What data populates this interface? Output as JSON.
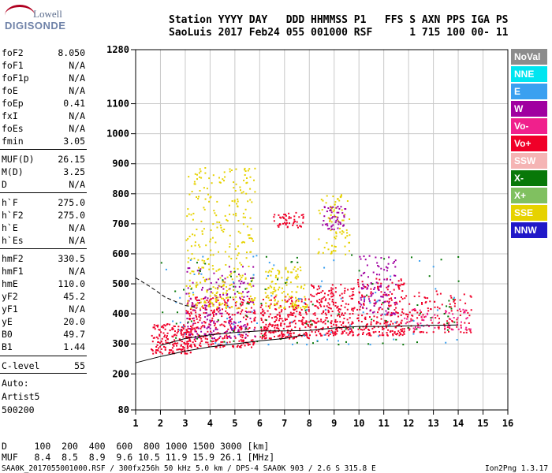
{
  "logo": {
    "line1": "Lowell",
    "line2": "DIGISONDE"
  },
  "header": {
    "line1": "Station YYYY DAY   DDD HHMMSS P1   FFS S AXN PPS IGA PS",
    "line2": "SaoLuis 2017 Feb24 055 001000 RSF      1 715 100 00- 11"
  },
  "params": [
    {
      "k": "foF2",
      "v": "8.050"
    },
    {
      "k": "foF1",
      "v": "N/A"
    },
    {
      "k": "foF1p",
      "v": "N/A"
    },
    {
      "k": "foE",
      "v": "N/A"
    },
    {
      "k": "foEp",
      "v": "0.41"
    },
    {
      "k": "fxI",
      "v": "N/A"
    },
    {
      "k": "foEs",
      "v": "N/A"
    },
    {
      "k": "fmin",
      "v": "3.05"
    },
    {
      "k": "MUF(D)",
      "v": "26.15"
    },
    {
      "k": "M(D)",
      "v": "3.25"
    },
    {
      "k": "D",
      "v": "N/A"
    },
    {
      "k": "h`F",
      "v": "275.0"
    },
    {
      "k": "h`F2",
      "v": "275.0"
    },
    {
      "k": "h`E",
      "v": "N/A"
    },
    {
      "k": "h`Es",
      "v": "N/A"
    },
    {
      "k": "hmF2",
      "v": "330.5"
    },
    {
      "k": "hmF1",
      "v": "N/A"
    },
    {
      "k": "hmE",
      "v": "110.0"
    },
    {
      "k": "yF2",
      "v": "45.2"
    },
    {
      "k": "yF1",
      "v": "N/A"
    },
    {
      "k": "yE",
      "v": "20.0"
    },
    {
      "k": "B0",
      "v": "49.7"
    },
    {
      "k": "B1",
      "v": "1.44"
    },
    {
      "k": "C-level",
      "v": "55"
    }
  ],
  "notes": [
    "Auto:",
    "Artist5",
    "500200"
  ],
  "bottom_table": {
    "line1": "D     100  200  400  600  800 1000 1500 3000 [km]",
    "line2": "MUF   8.4  8.5  8.9  9.6 10.5 11.9 15.9 26.1 [MHz]"
  },
  "footer": {
    "left": "SAA0K_2017055001000.RSF / 300fx256h 50 kHz 5.0 km / DPS-4 SAA0K 903 / 2.6 S 315.8 E",
    "right": "Ion2Png 1.3.17"
  },
  "legend": [
    {
      "label": "NoVal",
      "color": "#8c8c8c"
    },
    {
      "label": "NNE",
      "color": "#00e5f0"
    },
    {
      "label": "E",
      "color": "#3aa0f0"
    },
    {
      "label": "W",
      "color": "#a000a0"
    },
    {
      "label": "Vo-",
      "color": "#f0208c"
    },
    {
      "label": "Vo+",
      "color": "#f00028"
    },
    {
      "label": "SSW",
      "color": "#f5b4b4"
    },
    {
      "label": "X-",
      "color": "#087808"
    },
    {
      "label": "X+",
      "color": "#80c060"
    },
    {
      "label": "SSE",
      "color": "#e6d200"
    },
    {
      "label": "NNW",
      "color": "#2018c8"
    }
  ],
  "chart_data": {
    "type": "scatter",
    "xlim": [
      1,
      16
    ],
    "ylim": [
      80,
      1280
    ],
    "x_ticks": [
      1,
      2,
      3,
      4,
      5,
      6,
      7,
      8,
      9,
      10,
      11,
      12,
      13,
      14,
      15,
      16
    ],
    "y_ticks": [
      80,
      200,
      300,
      400,
      500,
      600,
      700,
      800,
      900,
      1000,
      1100,
      1280
    ],
    "grid": true,
    "clusters": [
      {
        "x": [
          1.6,
          3.2
        ],
        "y": [
          270,
          370
        ],
        "color": "#f00028",
        "n": 180
      },
      {
        "x": [
          3.0,
          5.8
        ],
        "y": [
          290,
          460
        ],
        "color": "#f00028",
        "n": 320
      },
      {
        "x": [
          3.0,
          5.8
        ],
        "y": [
          320,
          560
        ],
        "color": "#a000a0",
        "n": 180
      },
      {
        "x": [
          3.0,
          5.8
        ],
        "y": [
          420,
          900
        ],
        "color": "#e6d200",
        "n": 320
      },
      {
        "x": [
          6.0,
          8.0
        ],
        "y": [
          320,
          460
        ],
        "color": "#f00028",
        "n": 240
      },
      {
        "x": [
          6.2,
          7.9
        ],
        "y": [
          420,
          560
        ],
        "color": "#e6d200",
        "n": 120
      },
      {
        "x": [
          6.5,
          7.8
        ],
        "y": [
          690,
          740
        ],
        "color": "#f00028",
        "n": 50
      },
      {
        "x": [
          8.0,
          9.8
        ],
        "y": [
          330,
          500
        ],
        "color": "#f00028",
        "n": 240
      },
      {
        "x": [
          8.3,
          9.6
        ],
        "y": [
          600,
          800
        ],
        "color": "#e6d200",
        "n": 80
      },
      {
        "x": [
          8.5,
          9.5
        ],
        "y": [
          680,
          760
        ],
        "color": "#a000a0",
        "n": 50
      },
      {
        "x": [
          9.9,
          11.8
        ],
        "y": [
          330,
          520
        ],
        "color": "#f00028",
        "n": 220
      },
      {
        "x": [
          10.0,
          11.5
        ],
        "y": [
          400,
          600
        ],
        "color": "#a000a0",
        "n": 100
      },
      {
        "x": [
          11.8,
          14.5
        ],
        "y": [
          340,
          480
        ],
        "color": "#f00028",
        "n": 120
      },
      {
        "x": [
          11.8,
          14.5
        ],
        "y": [
          350,
          420
        ],
        "color": "#f0208c",
        "n": 60
      },
      {
        "x": [
          2.0,
          14.0
        ],
        "y": [
          300,
          600
        ],
        "color": "#087808",
        "n": 100
      },
      {
        "x": [
          2.0,
          14.0
        ],
        "y": [
          300,
          600
        ],
        "color": "#3aa0f0",
        "n": 80
      }
    ],
    "profile_lines": [
      {
        "name": "solid-lower",
        "style": "solid",
        "points": [
          [
            1.0,
            237
          ],
          [
            2.0,
            258
          ],
          [
            3.0,
            276
          ],
          [
            4.0,
            290
          ],
          [
            5.0,
            300
          ],
          [
            6.0,
            310
          ],
          [
            7.0,
            318
          ],
          [
            7.8,
            330
          ]
        ]
      },
      {
        "name": "solid-upper",
        "style": "solid",
        "points": [
          [
            2.0,
            295
          ],
          [
            3.0,
            318
          ],
          [
            4.0,
            330
          ],
          [
            5.0,
            338
          ],
          [
            6.0,
            343
          ],
          [
            7.0,
            343
          ],
          [
            8.0,
            345
          ],
          [
            9.0,
            353
          ],
          [
            10.0,
            358
          ],
          [
            11.0,
            358
          ],
          [
            12.0,
            360
          ],
          [
            13.0,
            362
          ],
          [
            14.0,
            363
          ]
        ]
      },
      {
        "name": "dashed",
        "style": "dashed",
        "points": [
          [
            1.0,
            520
          ],
          [
            1.6,
            490
          ],
          [
            2.2,
            455
          ],
          [
            3.0,
            428
          ],
          [
            3.5,
            420
          ]
        ]
      }
    ]
  }
}
